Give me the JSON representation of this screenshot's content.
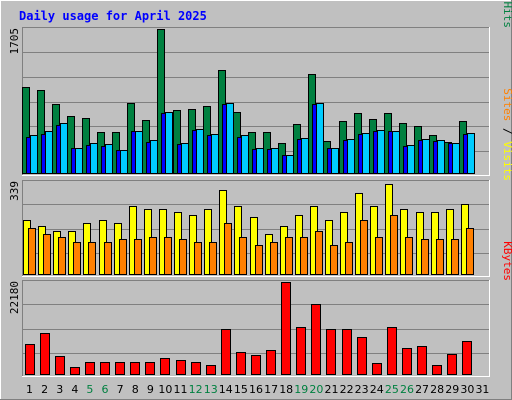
{
  "title": "Daily usage for April 2025",
  "chart_data": [
    {
      "type": "bar",
      "panel": "hits-files-pages",
      "ymax_label": "1705",
      "ylim": [
        0,
        1705
      ],
      "grid": true,
      "right_label": [
        {
          "text": "Pages",
          "color": "#00ccff"
        },
        {
          "text": " / ",
          "color": "#000000"
        },
        {
          "text": "Files",
          "color": "#0000ff"
        },
        {
          "text": " / ",
          "color": "#000000"
        },
        {
          "text": "Hits",
          "color": "#008040"
        }
      ],
      "series": [
        {
          "name": "Hits",
          "color": "#008040",
          "values": [
            1020,
            990,
            820,
            680,
            660,
            490,
            490,
            840,
            640,
            1705,
            750,
            770,
            800,
            1220,
            730,
            490,
            490,
            360,
            590,
            1180,
            390,
            620,
            720,
            650,
            720,
            600,
            560,
            460,
            380,
            620
          ]
        },
        {
          "name": "Files",
          "color": "#0000ff",
          "values": [
            430,
            470,
            580,
            300,
            340,
            330,
            280,
            500,
            380,
            720,
            350,
            520,
            460,
            820,
            440,
            290,
            290,
            220,
            410,
            820,
            300,
            400,
            470,
            510,
            500,
            330,
            400,
            390,
            360,
            470
          ]
        },
        {
          "name": "Pages",
          "color": "#00ccff",
          "values": [
            460,
            500,
            600,
            310,
            360,
            350,
            280,
            510,
            400,
            730,
            360,
            530,
            470,
            840,
            460,
            300,
            300,
            220,
            420,
            840,
            310,
            410,
            480,
            520,
            510,
            340,
            410,
            400,
            370,
            480
          ]
        }
      ]
    },
    {
      "type": "bar",
      "panel": "visits-sites",
      "ymax_label": "339",
      "ylim": [
        0,
        339
      ],
      "grid": true,
      "right_label": [
        {
          "text": "Sites",
          "color": "#ff8000"
        },
        {
          "text": " / ",
          "color": "#000000"
        },
        {
          "text": "Visits",
          "color": "#ffff00"
        }
      ],
      "series": [
        {
          "name": "Visits",
          "color": "#ffff00",
          "values": [
            200,
            180,
            160,
            160,
            190,
            200,
            190,
            250,
            240,
            240,
            230,
            220,
            240,
            310,
            250,
            210,
            150,
            180,
            220,
            250,
            200,
            230,
            300,
            250,
            330,
            240,
            230,
            230,
            240,
            260
          ]
        },
        {
          "name": "Sites",
          "color": "#ff8000",
          "values": [
            170,
            150,
            140,
            120,
            120,
            120,
            130,
            130,
            140,
            140,
            130,
            120,
            120,
            190,
            140,
            110,
            120,
            140,
            140,
            160,
            110,
            120,
            200,
            140,
            220,
            140,
            130,
            130,
            130,
            170
          ]
        }
      ]
    },
    {
      "type": "bar",
      "panel": "kbytes",
      "ymax_label": "22180",
      "ylim": [
        0,
        22180
      ],
      "grid": true,
      "right_label": [
        {
          "text": "KBytes",
          "color": "#ff0000"
        }
      ],
      "series": [
        {
          "name": "KBytes",
          "color": "#ff0000",
          "values": [
            7500,
            10000,
            4500,
            1800,
            3000,
            3000,
            3000,
            3000,
            3000,
            4000,
            3500,
            3000,
            2500,
            11000,
            5500,
            4800,
            6000,
            22180,
            11500,
            16900,
            11000,
            11000,
            9000,
            2800,
            11500,
            6500,
            7000,
            2500,
            5000,
            8000
          ]
        }
      ]
    }
  ],
  "x_labels": [
    {
      "text": "1",
      "color": "#000000"
    },
    {
      "text": "2",
      "color": "#000000"
    },
    {
      "text": "3",
      "color": "#000000"
    },
    {
      "text": "4",
      "color": "#000000"
    },
    {
      "text": "5",
      "color": "#008040"
    },
    {
      "text": "6",
      "color": "#008040"
    },
    {
      "text": "7",
      "color": "#000000"
    },
    {
      "text": "8",
      "color": "#000000"
    },
    {
      "text": "9",
      "color": "#000000"
    },
    {
      "text": "10",
      "color": "#000000"
    },
    {
      "text": "11",
      "color": "#000000"
    },
    {
      "text": "12",
      "color": "#008040"
    },
    {
      "text": "13",
      "color": "#008040"
    },
    {
      "text": "14",
      "color": "#000000"
    },
    {
      "text": "15",
      "color": "#000000"
    },
    {
      "text": "16",
      "color": "#000000"
    },
    {
      "text": "17",
      "color": "#000000"
    },
    {
      "text": "18",
      "color": "#000000"
    },
    {
      "text": "19",
      "color": "#008040"
    },
    {
      "text": "20",
      "color": "#008040"
    },
    {
      "text": "21",
      "color": "#000000"
    },
    {
      "text": "22",
      "color": "#000000"
    },
    {
      "text": "23",
      "color": "#000000"
    },
    {
      "text": "24",
      "color": "#000000"
    },
    {
      "text": "25",
      "color": "#008040"
    },
    {
      "text": "26",
      "color": "#008040"
    },
    {
      "text": "27",
      "color": "#000000"
    },
    {
      "text": "28",
      "color": "#000000"
    },
    {
      "text": "29",
      "color": "#000000"
    },
    {
      "text": "30",
      "color": "#000000"
    },
    {
      "text": "31",
      "color": "#000000"
    }
  ]
}
